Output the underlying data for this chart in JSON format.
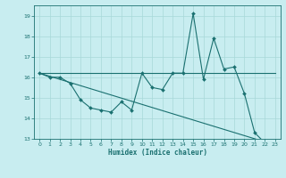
{
  "title": "",
  "xlabel": "Humidex (Indice chaleur)",
  "background_color": "#c8edf0",
  "line_color": "#1a7070",
  "grid_color": "#a8d8d8",
  "xlim": [
    -0.5,
    23.5
  ],
  "ylim": [
    13.0,
    19.5
  ],
  "yticks": [
    13,
    14,
    15,
    16,
    17,
    18,
    19
  ],
  "xticks": [
    0,
    1,
    2,
    3,
    4,
    5,
    6,
    7,
    8,
    9,
    10,
    11,
    12,
    13,
    14,
    15,
    16,
    17,
    18,
    19,
    20,
    21,
    22,
    23
  ],
  "series_main": {
    "x": [
      0,
      1,
      2,
      3,
      4,
      5,
      6,
      7,
      8,
      9,
      10,
      11,
      12,
      13,
      14,
      15,
      16,
      17,
      18,
      19,
      20,
      21,
      22,
      23
    ],
    "y": [
      16.2,
      16.0,
      16.0,
      15.7,
      14.9,
      14.5,
      14.4,
      14.3,
      14.8,
      14.4,
      16.2,
      15.5,
      15.4,
      16.2,
      16.2,
      19.1,
      15.9,
      17.9,
      16.4,
      16.5,
      15.2,
      13.3,
      12.8,
      12.7
    ]
  },
  "series_linear": {
    "x": [
      0,
      23
    ],
    "y": [
      16.2,
      12.7
    ]
  },
  "series_flat": {
    "x": [
      0,
      23
    ],
    "y": [
      16.2,
      16.2
    ]
  }
}
